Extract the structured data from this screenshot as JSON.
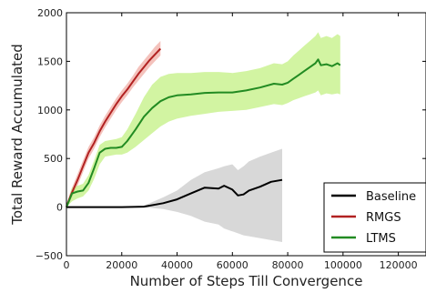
{
  "chart_data": {
    "type": "line",
    "title": "",
    "xlabel": "Number of Steps Till Convergence",
    "ylabel": "Total Reward Accumulated",
    "xlim": [
      0,
      130000
    ],
    "ylim": [
      -500,
      2000
    ],
    "xticks": [
      0,
      20000,
      40000,
      60000,
      80000,
      100000,
      120000
    ],
    "yticks": [
      -500,
      0,
      500,
      1000,
      1500,
      2000
    ],
    "grid": false,
    "legend_position": "lower-right",
    "series": [
      {
        "name": "Baseline",
        "color": "#000000",
        "band_color": "#c8c8c8",
        "x": [
          0,
          10000,
          20000,
          28000,
          35000,
          40000,
          45000,
          50000,
          55000,
          57000,
          60000,
          62000,
          64000,
          66000,
          70000,
          74000,
          78000
        ],
        "y": [
          0,
          0,
          0,
          5,
          40,
          80,
          140,
          200,
          190,
          220,
          180,
          120,
          130,
          170,
          210,
          260,
          280
        ],
        "band_low": [
          0,
          0,
          0,
          -2,
          -20,
          -50,
          -90,
          -150,
          -180,
          -220,
          -250,
          -270,
          -290,
          -300,
          -320,
          -340,
          -360
        ],
        "band_high": [
          0,
          0,
          0,
          15,
          100,
          170,
          280,
          360,
          400,
          420,
          440,
          380,
          420,
          470,
          520,
          560,
          600
        ]
      },
      {
        "name": "RMGS",
        "color": "#b22222",
        "band_color": "#f0a8a0",
        "x": [
          0,
          1000,
          2000,
          4000,
          6000,
          8000,
          10000,
          12000,
          14000,
          16000,
          18000,
          20000,
          22000,
          24000,
          26000,
          28000,
          30000,
          32000,
          34000
        ],
        "y": [
          0,
          80,
          150,
          280,
          420,
          560,
          660,
          780,
          880,
          970,
          1060,
          1140,
          1210,
          1290,
          1370,
          1440,
          1510,
          1570,
          1630
        ],
        "band_low": [
          0,
          40,
          100,
          220,
          360,
          500,
          600,
          720,
          820,
          910,
          1000,
          1080,
          1150,
          1230,
          1300,
          1370,
          1440,
          1500,
          1560
        ],
        "band_high": [
          0,
          120,
          200,
          340,
          480,
          620,
          720,
          840,
          940,
          1030,
          1120,
          1200,
          1270,
          1350,
          1440,
          1510,
          1580,
          1650,
          1710
        ]
      },
      {
        "name": "LTMS",
        "color": "#228b22",
        "band_color": "#bff07a",
        "x": [
          0,
          2000,
          4000,
          6000,
          8000,
          10000,
          12000,
          14000,
          16000,
          18000,
          20000,
          22000,
          25000,
          28000,
          31000,
          34000,
          37000,
          40000,
          45000,
          50000,
          55000,
          60000,
          65000,
          70000,
          75000,
          78000,
          80000,
          82000,
          84000,
          86000,
          88000,
          90000,
          91000,
          92000,
          94000,
          96000,
          98000,
          99000
        ],
        "y": [
          0,
          140,
          160,
          170,
          250,
          400,
          560,
          600,
          610,
          610,
          620,
          680,
          800,
          930,
          1020,
          1090,
          1130,
          1150,
          1160,
          1175,
          1180,
          1180,
          1200,
          1230,
          1270,
          1260,
          1280,
          1320,
          1360,
          1400,
          1440,
          1480,
          1520,
          1460,
          1470,
          1450,
          1480,
          1460
        ],
        "band_low": [
          0,
          60,
          90,
          110,
          170,
          290,
          440,
          520,
          530,
          540,
          540,
          560,
          620,
          690,
          760,
          830,
          880,
          910,
          940,
          960,
          980,
          990,
          1000,
          1030,
          1060,
          1050,
          1070,
          1100,
          1120,
          1140,
          1160,
          1180,
          1200,
          1150,
          1170,
          1160,
          1170,
          1160
        ],
        "band_high": [
          0,
          200,
          220,
          240,
          330,
          480,
          640,
          680,
          690,
          700,
          720,
          800,
          960,
          1130,
          1260,
          1340,
          1370,
          1380,
          1380,
          1390,
          1390,
          1380,
          1400,
          1430,
          1480,
          1470,
          1500,
          1560,
          1610,
          1660,
          1710,
          1760,
          1800,
          1740,
          1760,
          1740,
          1780,
          1760
        ]
      }
    ]
  }
}
